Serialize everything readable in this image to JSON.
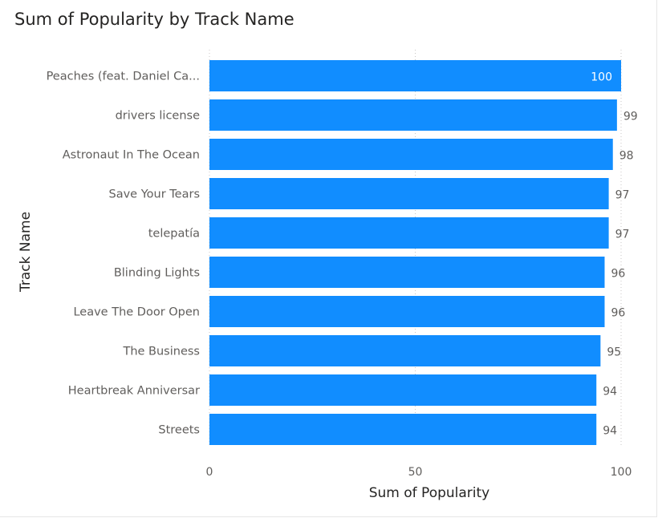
{
  "chart_data": {
    "type": "bar",
    "orientation": "horizontal",
    "title": "Sum of Popularity by Track Name",
    "xlabel": "Sum of Popularity",
    "ylabel": "Track Name",
    "categories": [
      "Peaches (feat. Daniel Ca...",
      "drivers license",
      "Astronaut In The Ocean",
      "Save Your Tears",
      "telepatía",
      "Blinding Lights",
      "Leave The Door Open",
      "The Business",
      "Heartbreak Anniversar",
      "Streets"
    ],
    "values": [
      100,
      99,
      98,
      97,
      97,
      96,
      96,
      95,
      94,
      94
    ],
    "xlim": [
      0,
      100
    ],
    "xticks": [
      "0",
      "50",
      "100"
    ],
    "grid": "vertical dotted",
    "data_labels": true,
    "bar_color": "#118DFF",
    "label_color_inside": "#ffffff",
    "label_color_outside": "#605E5C"
  }
}
